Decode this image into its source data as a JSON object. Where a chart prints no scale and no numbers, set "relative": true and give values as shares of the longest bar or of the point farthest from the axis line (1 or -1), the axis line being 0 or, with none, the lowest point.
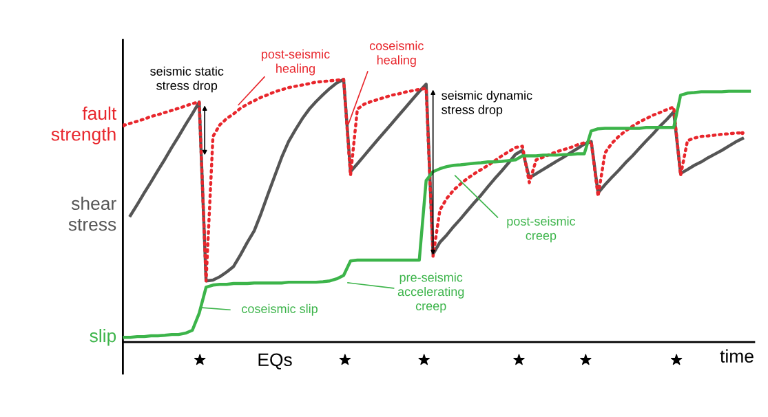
{
  "chart_data": {
    "type": "line",
    "relative": true,
    "xlabel": "time",
    "categories": [
      null,
      null,
      null,
      null,
      null,
      null,
      null,
      null,
      null,
      null,
      null,
      null,
      null,
      null,
      null,
      null,
      null,
      null,
      null,
      null,
      null,
      null,
      null,
      null,
      null,
      null,
      null,
      null,
      null,
      null,
      null,
      null,
      null,
      null,
      null,
      null,
      null,
      null,
      null,
      null,
      null,
      null,
      null,
      null,
      null,
      null,
      null,
      null,
      null,
      null,
      null,
      null,
      null,
      null,
      null,
      null,
      null,
      null,
      null,
      null,
      null,
      null,
      null,
      null,
      null,
      null,
      null,
      null,
      null,
      null,
      null,
      null,
      null,
      null,
      null,
      null,
      null,
      null,
      null,
      null,
      null,
      null,
      null,
      null,
      null,
      null,
      null,
      null,
      null,
      null,
      null,
      null
    ],
    "series": [
      {
        "name": "shear stress",
        "color": "#555555",
        "line_style": "solid",
        "values": [
          null,
          0.482,
          0.524,
          0.568,
          0.61,
          0.654,
          0.696,
          0.741,
          0.783,
          0.827,
          0.869,
          0.914,
          0.233,
          0.236,
          0.249,
          0.267,
          0.288,
          0.332,
          0.38,
          0.424,
          0.49,
          0.563,
          0.634,
          0.704,
          0.764,
          0.809,
          0.851,
          0.887,
          0.916,
          0.942,
          0.966,
          0.987,
          1.0,
          0.649,
          0.679,
          0.71,
          0.741,
          0.772,
          0.802,
          0.832,
          0.863,
          0.893,
          0.924,
          0.954,
          0.982,
          0.335,
          0.38,
          0.408,
          0.44,
          0.469,
          0.5,
          0.531,
          0.56,
          0.592,
          0.623,
          0.652,
          0.683,
          0.715,
          0.73,
          0.626,
          0.641,
          0.657,
          0.673,
          0.689,
          0.704,
          0.721,
          0.737,
          0.754,
          0.764,
          0.568,
          0.599,
          0.627,
          0.654,
          0.683,
          0.709,
          0.738,
          0.766,
          0.793,
          0.822,
          0.848,
          0.877,
          0.642,
          0.657,
          0.673,
          0.686,
          0.702,
          0.716,
          0.73,
          0.746,
          0.762,
          0.775,
          null
        ]
      },
      {
        "name": "fault strength",
        "color": "#e8262c",
        "line_style": "dotted",
        "values": [
          0.825,
          0.833,
          0.841,
          0.849,
          0.859,
          0.866,
          0.874,
          0.882,
          0.89,
          0.899,
          0.908,
          0.914,
          0.233,
          0.783,
          0.827,
          0.851,
          0.869,
          0.89,
          0.906,
          0.919,
          0.932,
          0.942,
          0.953,
          0.961,
          0.969,
          0.974,
          0.979,
          0.984,
          0.99,
          0.992,
          0.995,
          0.997,
          1.0,
          0.634,
          0.887,
          0.906,
          0.916,
          0.924,
          0.932,
          0.94,
          0.945,
          0.952,
          0.957,
          0.962,
          0.966,
          0.327,
          0.503,
          0.547,
          0.579,
          0.602,
          0.623,
          0.641,
          0.657,
          0.673,
          0.691,
          0.709,
          0.725,
          0.741,
          0.746,
          0.607,
          0.694,
          0.704,
          0.715,
          0.725,
          0.733,
          0.741,
          0.751,
          0.759,
          0.764,
          0.555,
          0.72,
          0.757,
          0.783,
          0.804,
          0.822,
          0.838,
          0.851,
          0.864,
          0.874,
          0.885,
          0.895,
          0.634,
          0.767,
          0.777,
          0.783,
          0.785,
          0.788,
          0.791,
          0.793,
          0.796,
          0.796,
          null
        ]
      },
      {
        "name": "slip",
        "color": "#3cb44a",
        "line_style": "solid",
        "values": [
          0.018,
          0.018,
          0.021,
          0.021,
          0.024,
          0.024,
          0.026,
          0.029,
          0.029,
          0.034,
          0.045,
          0.11,
          0.209,
          0.217,
          0.22,
          0.22,
          0.223,
          0.223,
          0.223,
          0.225,
          0.225,
          0.225,
          0.225,
          0.225,
          0.228,
          0.228,
          0.228,
          0.228,
          0.228,
          0.23,
          0.233,
          0.241,
          0.254,
          0.309,
          0.312,
          0.312,
          0.312,
          0.312,
          0.312,
          0.312,
          0.312,
          0.312,
          0.312,
          0.312,
          0.615,
          0.649,
          0.66,
          0.668,
          0.673,
          0.675,
          0.678,
          0.681,
          0.683,
          0.686,
          0.686,
          0.688,
          0.691,
          0.694,
          0.709,
          0.709,
          0.709,
          0.712,
          0.712,
          0.712,
          0.714,
          0.714,
          0.717,
          0.717,
          0.804,
          0.812,
          0.814,
          0.814,
          0.814,
          0.814,
          0.814,
          0.814,
          0.817,
          0.817,
          0.817,
          0.817,
          0.817,
          0.94,
          0.948,
          0.95,
          0.953,
          0.953,
          0.953,
          0.953,
          0.955,
          0.955,
          0.955,
          0.955
        ]
      }
    ],
    "annotations": [
      "seismic static\nstress drop",
      "post-seismic\nhealing",
      "coseismic\nhealing",
      "seismic dynamic\nstress drop",
      "post-seismic\ncreep",
      "pre-seismic\naccelerating\ncreep",
      "coseismic slip",
      "EQs"
    ]
  }
}
